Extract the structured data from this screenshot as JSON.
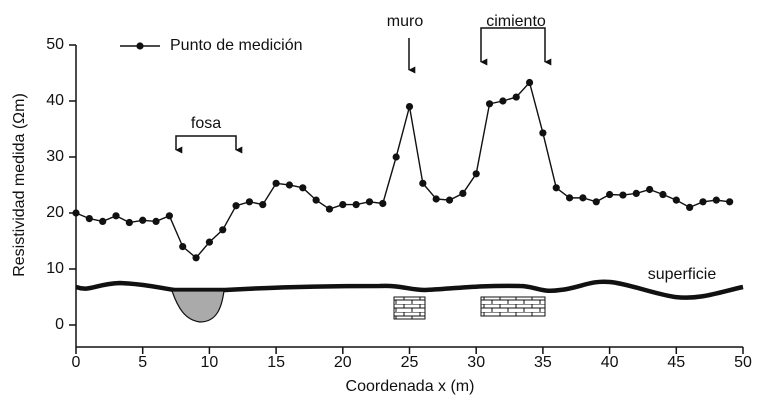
{
  "chart_data": {
    "type": "line",
    "x": [
      0,
      1,
      2,
      3,
      4,
      5,
      6,
      7,
      8,
      9,
      10,
      11,
      12,
      13,
      14,
      15,
      16,
      17,
      18,
      19,
      20,
      21,
      22,
      23,
      24,
      25,
      26,
      27,
      28,
      29,
      30,
      31,
      32,
      33,
      34,
      35,
      36,
      37,
      38,
      39,
      40,
      41,
      42,
      43,
      44,
      45,
      46,
      47,
      48,
      49
    ],
    "series": [
      {
        "name": "Punto de medición",
        "color": "#111111",
        "values": [
          20,
          19,
          18.5,
          19.5,
          18.3,
          18.7,
          18.5,
          19.5,
          14,
          12,
          14.8,
          17,
          21.3,
          22,
          21.5,
          25.3,
          25,
          24.5,
          22.3,
          20.7,
          21.5,
          21.5,
          22,
          21.7,
          30,
          39,
          25.3,
          22.5,
          22.3,
          23.5,
          27,
          39.5,
          40,
          40.7,
          43.3,
          34.3,
          24.5,
          22.7,
          22.7,
          22,
          23.3,
          23.2,
          23.5,
          24.2,
          23.3,
          22.3,
          21,
          22,
          22.3,
          22
        ]
      }
    ],
    "xlabel": "Coordenada x (m)",
    "ylabel": "Resistividad medida (Ωm)",
    "xlim": [
      0,
      50
    ],
    "xticks": [
      0,
      5,
      10,
      15,
      20,
      25,
      30,
      35,
      40,
      45,
      50
    ],
    "ylim": [
      0,
      50
    ],
    "yticks": [
      0,
      10,
      20,
      30,
      40,
      50
    ],
    "annotations": [
      "fosa",
      "muro",
      "cimiento",
      "superficie"
    ],
    "legend": "upper left"
  }
}
